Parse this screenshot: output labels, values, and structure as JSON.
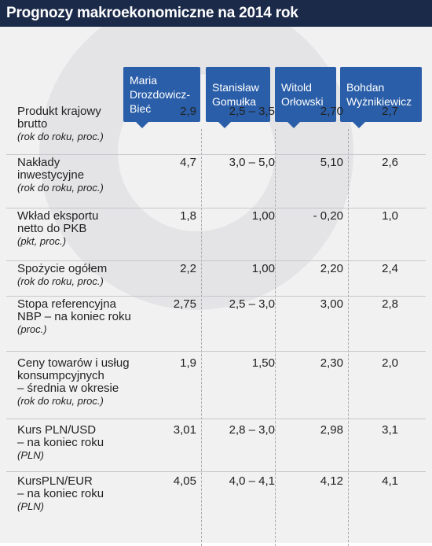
{
  "title": "Prognozy makroekonomiczne na 2014 rok",
  "chart_data": {
    "type": "table",
    "columns": [
      "Maria Drozdowicz-Bieć",
      "Stanisław Gomułka",
      "Witold Orłowski",
      "Bohdan Wyżnikiewicz"
    ],
    "column_lines": [
      [
        "Maria",
        "Drozdowicz-",
        "Bieć"
      ],
      [
        "Stanisław",
        "Gomułka"
      ],
      [
        "Witold",
        "Orłowski"
      ],
      [
        "Bohdan",
        "Wyżnikiewicz"
      ]
    ],
    "rows": [
      {
        "label_lines": [
          "Produkt krajowy",
          "brutto"
        ],
        "unit": "(rok do roku, proc.)",
        "values": [
          "2,9",
          "2,5 – 3,5",
          "2,70",
          "2,7"
        ]
      },
      {
        "label_lines": [
          "Nakłady",
          "inwestycyjne"
        ],
        "unit": "(rok do roku, proc.)",
        "values": [
          "4,7",
          "3,0 – 5,0",
          "5,10",
          "2,6"
        ]
      },
      {
        "label_lines": [
          "Wkład eksportu",
          "netto do PKB"
        ],
        "unit": "(pkt, proc.)",
        "values": [
          "1,8",
          "1,00",
          "- 0,20",
          "1,0"
        ]
      },
      {
        "label_lines": [
          "Spożycie ogółem"
        ],
        "unit": "(rok do roku, proc.)",
        "values": [
          "2,2",
          "1,00",
          "2,20",
          "2,4"
        ]
      },
      {
        "label_lines": [
          "Stopa referencyjna",
          "NBP – na koniec roku"
        ],
        "unit": "(proc.)",
        "values": [
          "2,75",
          "2,5 – 3,0",
          "3,00",
          "2,8"
        ]
      },
      {
        "label_lines": [
          "Ceny towarów i usług",
          "konsumpcyjnych",
          "– średnia w okresie"
        ],
        "unit": "(rok do roku, proc.)",
        "values": [
          "1,9",
          "1,50",
          "2,30",
          "2,0"
        ]
      },
      {
        "label_lines": [
          "Kurs PLN/USD",
          "– na koniec roku"
        ],
        "unit": "(PLN)",
        "values": [
          "3,01",
          "2,8 – 3,0",
          "2,98",
          "3,1"
        ]
      },
      {
        "label_lines": [
          "KursPLN/EUR",
          "– na koniec roku"
        ],
        "unit": "(PLN)",
        "values": [
          "4,05",
          "4,0 – 4,1",
          "4,12",
          "4,1"
        ]
      }
    ],
    "colors": {
      "title_bar": "#1c2a4a",
      "header_box": "#2a5ea8",
      "panel": "#f1f1f2"
    }
  }
}
